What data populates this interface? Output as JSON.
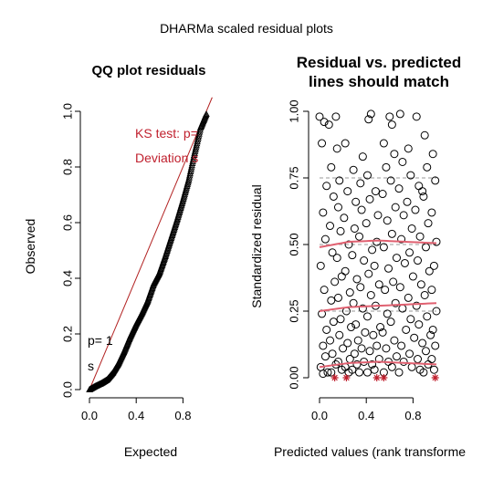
{
  "figure": {
    "title": "DHARMa scaled residual plots"
  },
  "chart_data": [
    {
      "type": "scatter",
      "title": "QQ plot residuals",
      "xlabel": "Expected",
      "ylabel": "Observed",
      "xlim": [
        0,
        1
      ],
      "ylim": [
        0,
        1
      ],
      "x_ticks": [
        "0.0",
        "0.4",
        "0.8"
      ],
      "y_ticks": [
        "0.0",
        "0.2",
        "0.4",
        "0.6",
        "0.8",
        "1.0"
      ],
      "reference_line": {
        "from": [
          0,
          0
        ],
        "to": [
          1,
          1
        ],
        "color": "#b22222"
      },
      "qq_curve": {
        "x": [
          0.0,
          0.05,
          0.1,
          0.15,
          0.2,
          0.25,
          0.3,
          0.35,
          0.4,
          0.45,
          0.5,
          0.55,
          0.6,
          0.65,
          0.7,
          0.75,
          0.8,
          0.85,
          0.9,
          0.95,
          1.0
        ],
        "y": [
          0.0,
          0.012,
          0.022,
          0.035,
          0.06,
          0.095,
          0.14,
          0.19,
          0.235,
          0.275,
          0.32,
          0.38,
          0.42,
          0.48,
          0.545,
          0.61,
          0.68,
          0.755,
          0.85,
          0.94,
          0.99
        ]
      },
      "annotations": [
        {
          "text": "KS test: p=",
          "color": "#c0202e"
        },
        {
          "text": "Deviation s",
          "color": "#c0202e"
        },
        {
          "text": "p= 1",
          "color": "#000000"
        },
        {
          "text": "s",
          "color": "#000000"
        }
      ]
    },
    {
      "type": "scatter",
      "title": [
        "Residual vs. predicted",
        "lines should match"
      ],
      "xlabel": "Predicted values (rank transforme",
      "ylabel": "Standardized residual",
      "xlim": [
        0,
        1
      ],
      "ylim": [
        0,
        1
      ],
      "x_ticks": [
        "0.0",
        "0.4",
        "0.8"
      ],
      "y_ticks": [
        "0.00",
        "0.25",
        "0.50",
        "0.75",
        "1.00"
      ],
      "reference_lines_y": [
        0.25,
        0.5,
        0.75
      ],
      "quantile_curves": [
        {
          "x": [
            0.0,
            0.25,
            0.5,
            0.75,
            1.0
          ],
          "y": [
            0.04,
            0.055,
            0.06,
            0.055,
            0.05
          ]
        },
        {
          "x": [
            0.0,
            0.25,
            0.5,
            0.75,
            1.0
          ],
          "y": [
            0.25,
            0.265,
            0.27,
            0.275,
            0.28
          ]
        },
        {
          "x": [
            0.0,
            0.25,
            0.5,
            0.75,
            1.0
          ],
          "y": [
            0.49,
            0.51,
            0.515,
            0.51,
            0.505
          ]
        }
      ],
      "curve_color": "#e06070",
      "outlier_color": "#c0202e",
      "outliers": [
        {
          "x": 0.13,
          "y": 0.0
        },
        {
          "x": 0.23,
          "y": 0.0
        },
        {
          "x": 0.49,
          "y": 0.0
        },
        {
          "x": 0.55,
          "y": 0.0
        },
        {
          "x": 0.99,
          "y": 0.0
        }
      ],
      "points": [
        {
          "x": 0.0,
          "y": 0.98
        },
        {
          "x": 0.02,
          "y": 0.88
        },
        {
          "x": 0.04,
          "y": 0.96
        },
        {
          "x": 0.06,
          "y": 0.72
        },
        {
          "x": 0.03,
          "y": 0.62
        },
        {
          "x": 0.05,
          "y": 0.52
        },
        {
          "x": 0.01,
          "y": 0.42
        },
        {
          "x": 0.04,
          "y": 0.33
        },
        {
          "x": 0.02,
          "y": 0.24
        },
        {
          "x": 0.06,
          "y": 0.18
        },
        {
          "x": 0.03,
          "y": 0.12
        },
        {
          "x": 0.05,
          "y": 0.08
        },
        {
          "x": 0.01,
          "y": 0.04
        },
        {
          "x": 0.07,
          "y": 0.02
        },
        {
          "x": 0.03,
          "y": 0.015
        },
        {
          "x": 0.08,
          "y": 0.95
        },
        {
          "x": 0.1,
          "y": 0.79
        },
        {
          "x": 0.12,
          "y": 0.68
        },
        {
          "x": 0.09,
          "y": 0.57
        },
        {
          "x": 0.11,
          "y": 0.47
        },
        {
          "x": 0.13,
          "y": 0.36
        },
        {
          "x": 0.1,
          "y": 0.29
        },
        {
          "x": 0.12,
          "y": 0.21
        },
        {
          "x": 0.09,
          "y": 0.14
        },
        {
          "x": 0.11,
          "y": 0.09
        },
        {
          "x": 0.14,
          "y": 0.05
        },
        {
          "x": 0.1,
          "y": 0.02
        },
        {
          "x": 0.15,
          "y": 0.86
        },
        {
          "x": 0.17,
          "y": 0.74
        },
        {
          "x": 0.16,
          "y": 0.64
        },
        {
          "x": 0.18,
          "y": 0.55
        },
        {
          "x": 0.15,
          "y": 0.45
        },
        {
          "x": 0.19,
          "y": 0.38
        },
        {
          "x": 0.16,
          "y": 0.3
        },
        {
          "x": 0.18,
          "y": 0.22
        },
        {
          "x": 0.17,
          "y": 0.16
        },
        {
          "x": 0.2,
          "y": 0.11
        },
        {
          "x": 0.16,
          "y": 0.06
        },
        {
          "x": 0.19,
          "y": 0.03
        },
        {
          "x": 0.22,
          "y": 0.88
        },
        {
          "x": 0.24,
          "y": 0.7
        },
        {
          "x": 0.21,
          "y": 0.6
        },
        {
          "x": 0.25,
          "y": 0.5
        },
        {
          "x": 0.22,
          "y": 0.4
        },
        {
          "x": 0.26,
          "y": 0.32
        },
        {
          "x": 0.23,
          "y": 0.25
        },
        {
          "x": 0.27,
          "y": 0.19
        },
        {
          "x": 0.24,
          "y": 0.13
        },
        {
          "x": 0.26,
          "y": 0.07
        },
        {
          "x": 0.22,
          "y": 0.04
        },
        {
          "x": 0.25,
          "y": 0.02
        },
        {
          "x": 0.29,
          "y": 0.78
        },
        {
          "x": 0.31,
          "y": 0.66
        },
        {
          "x": 0.3,
          "y": 0.56
        },
        {
          "x": 0.28,
          "y": 0.46
        },
        {
          "x": 0.32,
          "y": 0.37
        },
        {
          "x": 0.29,
          "y": 0.28
        },
        {
          "x": 0.31,
          "y": 0.2
        },
        {
          "x": 0.33,
          "y": 0.14
        },
        {
          "x": 0.3,
          "y": 0.09
        },
        {
          "x": 0.32,
          "y": 0.05
        },
        {
          "x": 0.28,
          "y": 0.03
        },
        {
          "x": 0.35,
          "y": 0.73
        },
        {
          "x": 0.37,
          "y": 0.83
        },
        {
          "x": 0.36,
          "y": 0.63
        },
        {
          "x": 0.34,
          "y": 0.53
        },
        {
          "x": 0.38,
          "y": 0.44
        },
        {
          "x": 0.35,
          "y": 0.34
        },
        {
          "x": 0.37,
          "y": 0.26
        },
        {
          "x": 0.39,
          "y": 0.17
        },
        {
          "x": 0.36,
          "y": 0.11
        },
        {
          "x": 0.38,
          "y": 0.06
        },
        {
          "x": 0.34,
          "y": 0.02
        },
        {
          "x": 0.42,
          "y": 0.97
        },
        {
          "x": 0.44,
          "y": 0.99
        },
        {
          "x": 0.41,
          "y": 0.76
        },
        {
          "x": 0.43,
          "y": 0.67
        },
        {
          "x": 0.4,
          "y": 0.58
        },
        {
          "x": 0.45,
          "y": 0.48
        },
        {
          "x": 0.42,
          "y": 0.39
        },
        {
          "x": 0.44,
          "y": 0.31
        },
        {
          "x": 0.41,
          "y": 0.23
        },
        {
          "x": 0.46,
          "y": 0.16
        },
        {
          "x": 0.43,
          "y": 0.1
        },
        {
          "x": 0.45,
          "y": 0.05
        },
        {
          "x": 0.41,
          "y": 0.02
        },
        {
          "x": 0.48,
          "y": 0.7
        },
        {
          "x": 0.5,
          "y": 0.61
        },
        {
          "x": 0.49,
          "y": 0.51
        },
        {
          "x": 0.47,
          "y": 0.42
        },
        {
          "x": 0.51,
          "y": 0.35
        },
        {
          "x": 0.48,
          "y": 0.27
        },
        {
          "x": 0.52,
          "y": 0.19
        },
        {
          "x": 0.49,
          "y": 0.12
        },
        {
          "x": 0.51,
          "y": 0.07
        },
        {
          "x": 0.47,
          "y": 0.03
        },
        {
          "x": 0.55,
          "y": 0.88
        },
        {
          "x": 0.57,
          "y": 0.79
        },
        {
          "x": 0.54,
          "y": 0.69
        },
        {
          "x": 0.58,
          "y": 0.59
        },
        {
          "x": 0.55,
          "y": 0.49
        },
        {
          "x": 0.59,
          "y": 0.41
        },
        {
          "x": 0.56,
          "y": 0.33
        },
        {
          "x": 0.58,
          "y": 0.24
        },
        {
          "x": 0.54,
          "y": 0.17
        },
        {
          "x": 0.57,
          "y": 0.11
        },
        {
          "x": 0.59,
          "y": 0.06
        },
        {
          "x": 0.55,
          "y": 0.02
        },
        {
          "x": 0.62,
          "y": 0.95
        },
        {
          "x": 0.64,
          "y": 0.84
        },
        {
          "x": 0.61,
          "y": 0.74
        },
        {
          "x": 0.65,
          "y": 0.64
        },
        {
          "x": 0.62,
          "y": 0.54
        },
        {
          "x": 0.66,
          "y": 0.45
        },
        {
          "x": 0.63,
          "y": 0.36
        },
        {
          "x": 0.65,
          "y": 0.28
        },
        {
          "x": 0.61,
          "y": 0.21
        },
        {
          "x": 0.64,
          "y": 0.14
        },
        {
          "x": 0.66,
          "y": 0.08
        },
        {
          "x": 0.62,
          "y": 0.04
        },
        {
          "x": 0.69,
          "y": 0.99
        },
        {
          "x": 0.71,
          "y": 0.81
        },
        {
          "x": 0.68,
          "y": 0.71
        },
        {
          "x": 0.72,
          "y": 0.61
        },
        {
          "x": 0.7,
          "y": 0.52
        },
        {
          "x": 0.73,
          "y": 0.43
        },
        {
          "x": 0.69,
          "y": 0.34
        },
        {
          "x": 0.71,
          "y": 0.26
        },
        {
          "x": 0.74,
          "y": 0.18
        },
        {
          "x": 0.7,
          "y": 0.12
        },
        {
          "x": 0.72,
          "y": 0.06
        },
        {
          "x": 0.68,
          "y": 0.02
        },
        {
          "x": 0.76,
          "y": 0.86
        },
        {
          "x": 0.78,
          "y": 0.76
        },
        {
          "x": 0.75,
          "y": 0.66
        },
        {
          "x": 0.79,
          "y": 0.56
        },
        {
          "x": 0.77,
          "y": 0.47
        },
        {
          "x": 0.8,
          "y": 0.38
        },
        {
          "x": 0.76,
          "y": 0.3
        },
        {
          "x": 0.78,
          "y": 0.22
        },
        {
          "x": 0.81,
          "y": 0.15
        },
        {
          "x": 0.77,
          "y": 0.09
        },
        {
          "x": 0.79,
          "y": 0.04
        },
        {
          "x": 0.83,
          "y": 0.98
        },
        {
          "x": 0.85,
          "y": 0.72
        },
        {
          "x": 0.82,
          "y": 0.63
        },
        {
          "x": 0.86,
          "y": 0.53
        },
        {
          "x": 0.84,
          "y": 0.44
        },
        {
          "x": 0.87,
          "y": 0.35
        },
        {
          "x": 0.83,
          "y": 0.27
        },
        {
          "x": 0.85,
          "y": 0.2
        },
        {
          "x": 0.88,
          "y": 0.13
        },
        {
          "x": 0.84,
          "y": 0.07
        },
        {
          "x": 0.86,
          "y": 0.03
        },
        {
          "x": 0.9,
          "y": 0.91
        },
        {
          "x": 0.92,
          "y": 0.79
        },
        {
          "x": 0.89,
          "y": 0.68
        },
        {
          "x": 0.93,
          "y": 0.58
        },
        {
          "x": 0.91,
          "y": 0.49
        },
        {
          "x": 0.94,
          "y": 0.4
        },
        {
          "x": 0.9,
          "y": 0.31
        },
        {
          "x": 0.92,
          "y": 0.23
        },
        {
          "x": 0.95,
          "y": 0.16
        },
        {
          "x": 0.91,
          "y": 0.1
        },
        {
          "x": 0.93,
          "y": 0.05
        },
        {
          "x": 0.89,
          "y": 0.02
        },
        {
          "x": 0.97,
          "y": 0.84
        },
        {
          "x": 0.99,
          "y": 0.74
        },
        {
          "x": 0.96,
          "y": 0.62
        },
        {
          "x": 1.0,
          "y": 0.51
        },
        {
          "x": 0.98,
          "y": 0.42
        },
        {
          "x": 0.96,
          "y": 0.33
        },
        {
          "x": 1.0,
          "y": 0.25
        },
        {
          "x": 0.97,
          "y": 0.18
        },
        {
          "x": 0.99,
          "y": 0.12
        },
        {
          "x": 0.96,
          "y": 0.07
        },
        {
          "x": 0.98,
          "y": 0.03
        },
        {
          "x": 0.14,
          "y": 0.98
        },
        {
          "x": 0.6,
          "y": 0.98
        },
        {
          "x": 0.88,
          "y": 0.7
        }
      ]
    }
  ]
}
